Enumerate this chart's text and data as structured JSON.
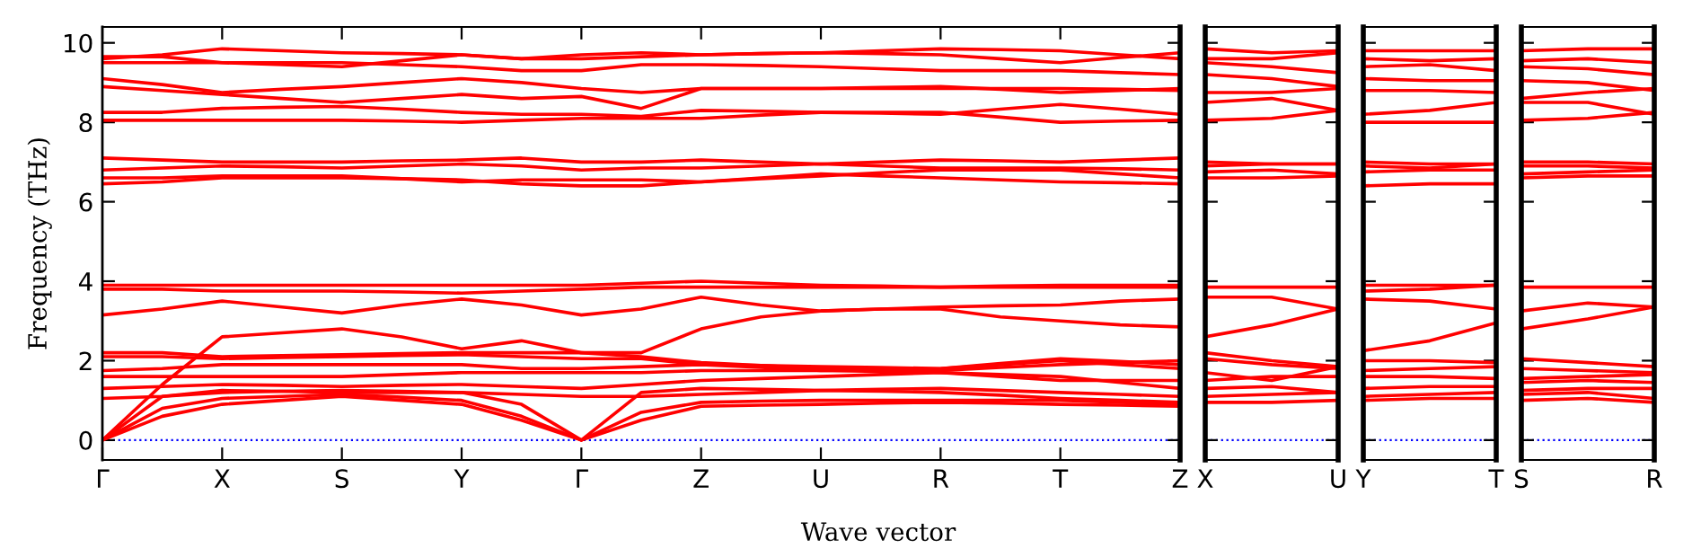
{
  "chart_data": [
    {
      "type": "line",
      "ylabel": "Frequency (THz)",
      "xlabel": "Wave vector",
      "color": "#ff0000",
      "line_style": "solid",
      "marker": "none",
      "grid": false,
      "categories": [
        "Γ",
        null,
        "X",
        null,
        "S",
        null,
        "Y",
        null,
        "Γ",
        null,
        "Z",
        null,
        "U",
        null,
        "R",
        null,
        "T",
        null,
        "Z"
      ],
      "ylim": [
        -0.5,
        10.4
      ],
      "yticks": [
        0,
        2,
        4,
        6,
        8,
        10
      ],
      "ref_lines": [
        {
          "axis": "y",
          "value": 0,
          "label": null,
          "color": "#0000ff",
          "line_style": "dotted"
        }
      ],
      "series": [
        {
          "values": [
            0,
            0.6,
            0.9,
            1.0,
            1.1,
            1.0,
            0.9,
            0.5,
            0,
            0.5,
            0.85,
            0.88,
            0.9,
            0.93,
            0.95,
            0.93,
            0.9,
            0.88,
            0.85
          ]
        },
        {
          "values": [
            0,
            0.8,
            1.05,
            1.1,
            1.15,
            1.08,
            1.0,
            0.6,
            0,
            0.7,
            0.95,
            0.98,
            1.0,
            1.0,
            1.0,
            1.0,
            1.0,
            0.95,
            0.9
          ]
        },
        {
          "values": [
            0,
            1.1,
            1.25,
            1.23,
            1.2,
            1.2,
            1.2,
            0.9,
            0,
            1.2,
            1.3,
            1.28,
            1.25,
            1.23,
            1.2,
            1.13,
            1.05,
            1.0,
            0.95
          ]
        },
        {
          "values": [
            1.05,
            1.1,
            1.2,
            1.23,
            1.25,
            1.23,
            1.2,
            1.15,
            1.1,
            1.1,
            1.15,
            1.2,
            1.25,
            1.28,
            1.3,
            1.25,
            1.2,
            1.15,
            1.1
          ]
        },
        {
          "values": [
            1.3,
            1.35,
            1.4,
            1.38,
            1.35,
            1.38,
            1.4,
            1.35,
            1.3,
            1.4,
            1.5,
            1.55,
            1.6,
            1.65,
            1.7,
            1.65,
            1.6,
            1.45,
            1.3
          ]
        },
        {
          "values": [
            1.6,
            1.6,
            1.6,
            1.6,
            1.6,
            1.65,
            1.7,
            1.7,
            1.7,
            1.7,
            1.75,
            1.75,
            1.75,
            1.78,
            1.8,
            1.9,
            2.0,
            1.9,
            1.8
          ]
        },
        {
          "values": [
            1.75,
            1.8,
            1.9,
            1.9,
            1.9,
            1.9,
            1.9,
            1.8,
            1.8,
            1.85,
            1.9,
            1.88,
            1.85,
            1.83,
            1.8,
            1.93,
            2.05,
            1.98,
            1.9
          ]
        },
        {
          "values": [
            2.2,
            2.2,
            2.1,
            2.13,
            2.15,
            2.18,
            2.2,
            2.2,
            2.2,
            2.1,
            1.95,
            1.88,
            1.8,
            1.78,
            1.75,
            1.83,
            1.9,
            1.95,
            2.0
          ]
        },
        {
          "values": [
            2.1,
            2.1,
            2.05,
            2.08,
            2.1,
            2.13,
            2.15,
            2.1,
            2.05,
            2.05,
            1.9,
            1.83,
            1.75,
            1.73,
            1.7,
            1.6,
            1.5,
            1.5,
            1.5
          ]
        },
        {
          "values": [
            0,
            1.4,
            2.6,
            2.7,
            2.8,
            2.6,
            2.3,
            2.5,
            2.2,
            2.2,
            2.8,
            3.1,
            3.25,
            3.3,
            3.3,
            3.1,
            3.0,
            2.9,
            2.85
          ]
        },
        {
          "values": [
            3.15,
            3.3,
            3.5,
            3.35,
            3.2,
            3.4,
            3.55,
            3.4,
            3.15,
            3.3,
            3.6,
            3.4,
            3.25,
            3.3,
            3.35,
            3.38,
            3.4,
            3.5,
            3.55
          ]
        },
        {
          "values": [
            3.8,
            3.8,
            3.75,
            3.75,
            3.75,
            3.73,
            3.7,
            3.75,
            3.8,
            3.85,
            3.85,
            3.85,
            3.85,
            3.85,
            3.85,
            3.85,
            3.85,
            3.85,
            3.85
          ]
        },
        {
          "values": [
            3.9,
            3.9,
            3.9,
            3.9,
            3.9,
            3.9,
            3.9,
            3.9,
            3.9,
            3.95,
            4.0,
            3.95,
            3.9,
            3.88,
            3.85,
            3.88,
            3.9,
            3.9,
            3.9
          ]
        },
        {
          "values": [
            6.45,
            6.5,
            6.6,
            6.6,
            6.6,
            6.58,
            6.55,
            6.45,
            6.4,
            6.4,
            6.5,
            6.6,
            6.7,
            6.65,
            6.6,
            6.55,
            6.5,
            6.48,
            6.45
          ]
        },
        {
          "values": [
            6.6,
            6.6,
            6.65,
            6.65,
            6.65,
            6.58,
            6.5,
            6.55,
            6.55,
            6.55,
            6.5,
            6.58,
            6.65,
            6.73,
            6.8,
            6.8,
            6.8,
            6.7,
            6.6
          ]
        },
        {
          "values": [
            6.8,
            6.85,
            6.9,
            6.88,
            6.85,
            6.9,
            6.95,
            6.9,
            6.8,
            6.85,
            6.85,
            6.9,
            6.95,
            6.9,
            6.85,
            6.85,
            6.85,
            6.83,
            6.8
          ]
        },
        {
          "values": [
            7.1,
            7.05,
            7.0,
            7.0,
            7.0,
            7.03,
            7.05,
            7.1,
            7.0,
            7.0,
            7.05,
            7.0,
            6.95,
            7.0,
            7.05,
            7.03,
            7.0,
            7.05,
            7.1
          ]
        },
        {
          "values": [
            8.05,
            8.05,
            8.05,
            8.05,
            8.05,
            8.03,
            8.0,
            8.05,
            8.1,
            8.1,
            8.1,
            8.18,
            8.25,
            8.25,
            8.25,
            8.13,
            8.0,
            8.03,
            8.05
          ]
        },
        {
          "values": [
            8.25,
            8.25,
            8.35,
            8.38,
            8.4,
            8.33,
            8.25,
            8.2,
            8.2,
            8.15,
            8.3,
            8.28,
            8.25,
            8.23,
            8.2,
            8.33,
            8.45,
            8.33,
            8.2
          ]
        },
        {
          "values": [
            8.9,
            8.8,
            8.7,
            8.6,
            8.5,
            8.6,
            8.7,
            8.6,
            8.65,
            8.35,
            8.85,
            8.85,
            8.85,
            8.85,
            8.85,
            8.85,
            8.85,
            8.83,
            8.8
          ]
        },
        {
          "values": [
            9.1,
            8.95,
            8.75,
            8.83,
            8.9,
            9.0,
            9.1,
            9.0,
            8.85,
            8.75,
            8.85,
            8.85,
            8.85,
            8.88,
            8.9,
            8.83,
            8.75,
            8.8,
            8.85
          ]
        },
        {
          "values": [
            9.5,
            9.5,
            9.5,
            9.5,
            9.5,
            9.45,
            9.4,
            9.3,
            9.3,
            9.45,
            9.45,
            9.43,
            9.4,
            9.35,
            9.3,
            9.3,
            9.3,
            9.25,
            9.2
          ]
        },
        {
          "values": [
            9.6,
            9.7,
            9.85,
            9.8,
            9.75,
            9.73,
            9.7,
            9.6,
            9.6,
            9.65,
            9.7,
            9.73,
            9.75,
            9.8,
            9.85,
            9.83,
            9.8,
            9.7,
            9.6
          ]
        },
        {
          "values": [
            9.65,
            9.65,
            9.5,
            9.45,
            9.4,
            9.55,
            9.7,
            9.6,
            9.7,
            9.75,
            9.7,
            9.73,
            9.75,
            9.73,
            9.7,
            9.6,
            9.5,
            9.63,
            9.75
          ]
        }
      ]
    },
    {
      "type": "line",
      "color": "#ff0000",
      "line_style": "solid",
      "marker": "none",
      "grid": false,
      "tick_labels": "x",
      "categories": [
        "X",
        null,
        "U"
      ],
      "ylim": [
        -0.5,
        10.4
      ],
      "ref_lines": [
        {
          "axis": "y",
          "value": 0,
          "label": null,
          "color": "#0000ff",
          "line_style": "dotted"
        }
      ],
      "series": [
        {
          "values": [
            0.95,
            0.95,
            1.0
          ]
        },
        {
          "values": [
            1.1,
            1.15,
            1.2
          ]
        },
        {
          "values": [
            1.3,
            1.35,
            1.2
          ]
        },
        {
          "values": [
            1.5,
            1.6,
            1.6
          ]
        },
        {
          "values": [
            1.7,
            1.5,
            1.85
          ]
        },
        {
          "values": [
            2.05,
            1.9,
            1.8
          ]
        },
        {
          "values": [
            2.2,
            2.0,
            1.85
          ]
        },
        {
          "values": [
            2.6,
            2.9,
            3.3
          ]
        },
        {
          "values": [
            3.6,
            3.6,
            3.3
          ]
        },
        {
          "values": [
            3.85,
            3.85,
            3.85
          ]
        },
        {
          "values": [
            6.6,
            6.6,
            6.65
          ]
        },
        {
          "values": [
            6.75,
            6.8,
            6.7
          ]
        },
        {
          "values": [
            6.9,
            6.95,
            6.95
          ]
        },
        {
          "values": [
            7.0,
            6.95,
            6.95
          ]
        },
        {
          "values": [
            8.05,
            8.1,
            8.3
          ]
        },
        {
          "values": [
            8.5,
            8.6,
            8.3
          ]
        },
        {
          "values": [
            8.75,
            8.75,
            8.85
          ]
        },
        {
          "values": [
            9.2,
            9.1,
            8.9
          ]
        },
        {
          "values": [
            9.5,
            9.4,
            9.25
          ]
        },
        {
          "values": [
            9.6,
            9.6,
            9.75
          ]
        },
        {
          "values": [
            9.85,
            9.75,
            9.8
          ]
        }
      ]
    },
    {
      "type": "line",
      "color": "#ff0000",
      "line_style": "solid",
      "marker": "none",
      "grid": false,
      "tick_labels": "x",
      "categories": [
        "Y",
        null,
        "T"
      ],
      "ylim": [
        -0.5,
        10.4
      ],
      "ref_lines": [
        {
          "axis": "y",
          "value": 0,
          "label": null,
          "color": "#0000ff",
          "line_style": "dotted"
        }
      ],
      "series": [
        {
          "values": [
            1.0,
            1.05,
            1.05
          ]
        },
        {
          "values": [
            1.1,
            1.15,
            1.2
          ]
        },
        {
          "values": [
            1.3,
            1.35,
            1.35
          ]
        },
        {
          "values": [
            1.6,
            1.6,
            1.55
          ]
        },
        {
          "values": [
            1.75,
            1.8,
            1.85
          ]
        },
        {
          "values": [
            2.0,
            2.0,
            1.95
          ]
        },
        {
          "values": [
            2.25,
            2.5,
            2.95
          ]
        },
        {
          "values": [
            3.55,
            3.5,
            3.3
          ]
        },
        {
          "values": [
            3.75,
            3.8,
            3.9
          ]
        },
        {
          "values": [
            3.9,
            3.9,
            3.9
          ]
        },
        {
          "values": [
            6.4,
            6.45,
            6.45
          ]
        },
        {
          "values": [
            6.75,
            6.8,
            6.8
          ]
        },
        {
          "values": [
            6.9,
            6.85,
            6.95
          ]
        },
        {
          "values": [
            7.0,
            6.95,
            6.95
          ]
        },
        {
          "values": [
            8.0,
            8.0,
            8.0
          ]
        },
        {
          "values": [
            8.2,
            8.3,
            8.5
          ]
        },
        {
          "values": [
            8.8,
            8.8,
            8.75
          ]
        },
        {
          "values": [
            9.1,
            9.05,
            9.05
          ]
        },
        {
          "values": [
            9.4,
            9.45,
            9.3
          ]
        },
        {
          "values": [
            9.6,
            9.55,
            9.6
          ]
        },
        {
          "values": [
            9.8,
            9.8,
            9.8
          ]
        }
      ]
    },
    {
      "type": "line",
      "color": "#ff0000",
      "line_style": "solid",
      "marker": "none",
      "grid": false,
      "tick_labels": "x",
      "categories": [
        "S",
        null,
        "R"
      ],
      "ylim": [
        -0.5,
        10.4
      ],
      "ref_lines": [
        {
          "axis": "y",
          "value": 0,
          "label": null,
          "color": "#0000ff",
          "line_style": "dotted"
        }
      ],
      "series": [
        {
          "values": [
            1.0,
            1.05,
            0.95
          ]
        },
        {
          "values": [
            1.15,
            1.2,
            1.05
          ]
        },
        {
          "values": [
            1.25,
            1.3,
            1.3
          ]
        },
        {
          "values": [
            1.45,
            1.5,
            1.45
          ]
        },
        {
          "values": [
            1.55,
            1.6,
            1.65
          ]
        },
        {
          "values": [
            1.8,
            1.75,
            1.7
          ]
        },
        {
          "values": [
            2.05,
            1.95,
            1.85
          ]
        },
        {
          "values": [
            2.8,
            3.05,
            3.35
          ]
        },
        {
          "values": [
            3.25,
            3.45,
            3.35
          ]
        },
        {
          "values": [
            3.85,
            3.85,
            3.85
          ]
        },
        {
          "values": [
            6.6,
            6.65,
            6.65
          ]
        },
        {
          "values": [
            6.7,
            6.75,
            6.8
          ]
        },
        {
          "values": [
            6.9,
            6.9,
            6.85
          ]
        },
        {
          "values": [
            7.0,
            7.0,
            6.95
          ]
        },
        {
          "values": [
            8.05,
            8.1,
            8.25
          ]
        },
        {
          "values": [
            8.5,
            8.5,
            8.2
          ]
        },
        {
          "values": [
            8.6,
            8.75,
            8.85
          ]
        },
        {
          "values": [
            9.05,
            9.0,
            8.8
          ]
        },
        {
          "values": [
            9.4,
            9.35,
            9.2
          ]
        },
        {
          "values": [
            9.55,
            9.6,
            9.5
          ]
        },
        {
          "values": [
            9.8,
            9.85,
            9.85
          ]
        }
      ]
    }
  ]
}
